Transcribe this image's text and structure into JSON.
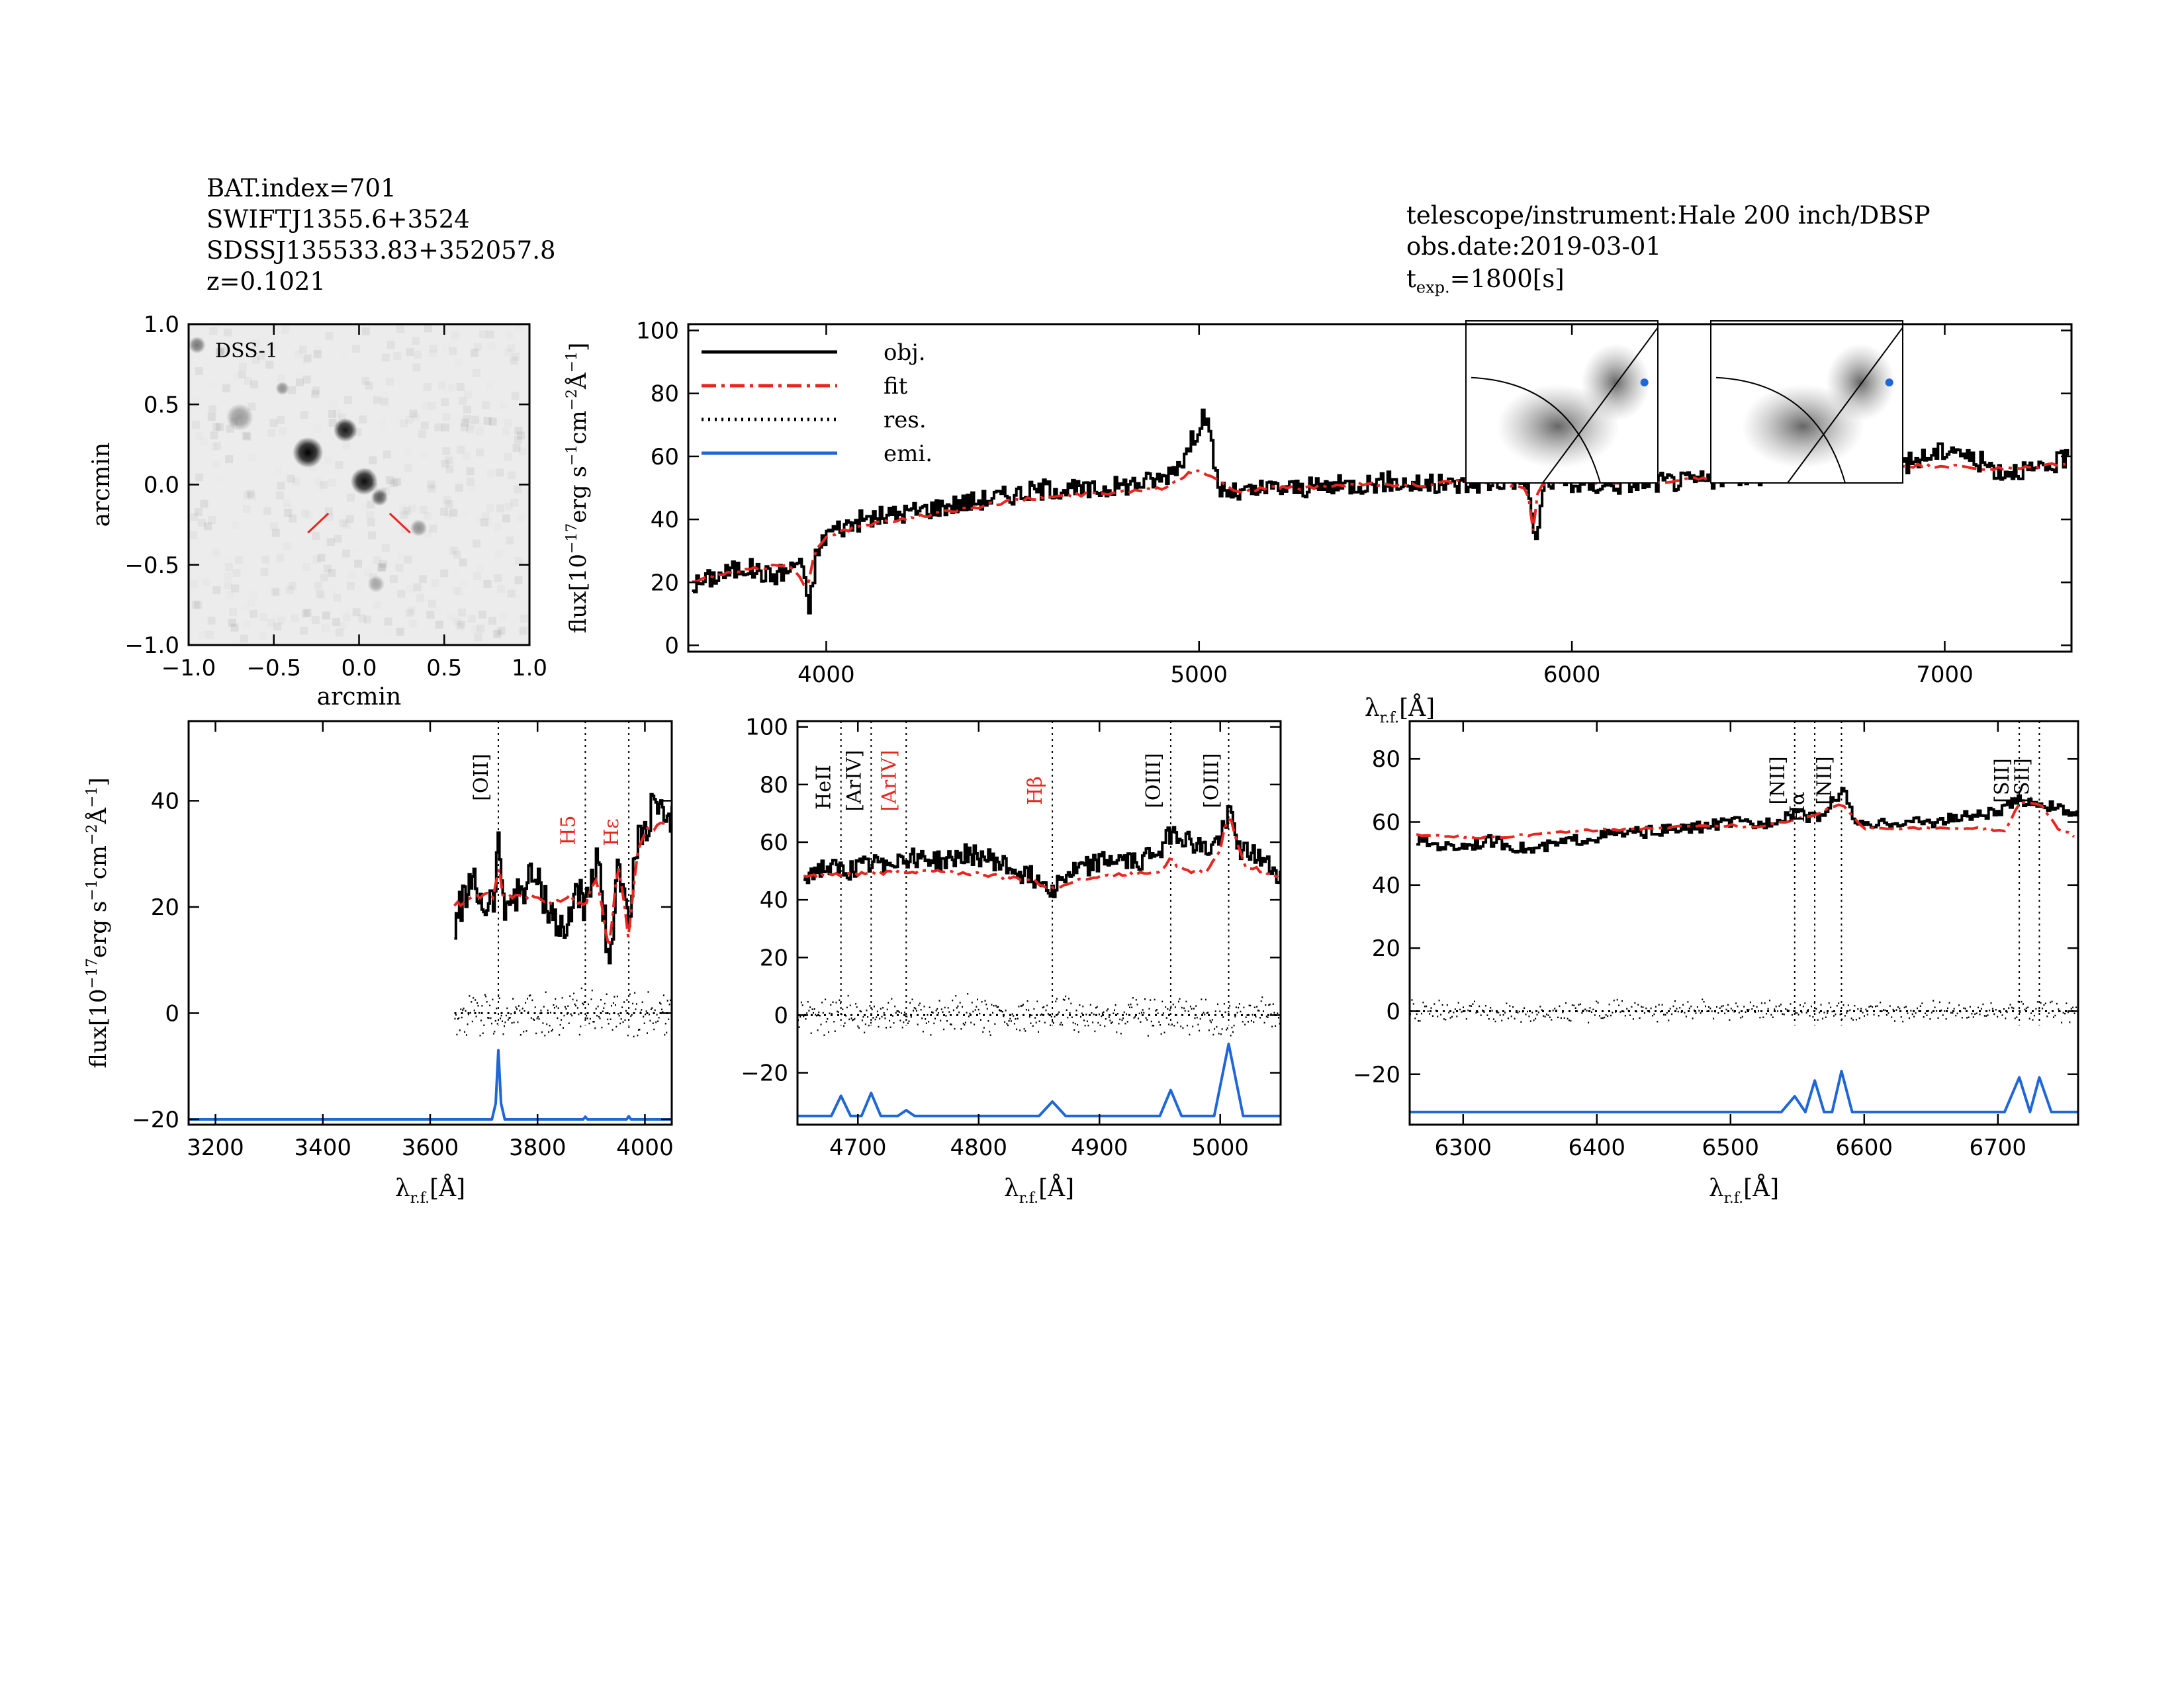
{
  "header_left": {
    "bat_index": "BAT.index=701",
    "swift_name": "SWIFTJ1355.6+3524",
    "sdss_name": "SDSSJ135533.83+352057.8",
    "redshift": "z=0.1021"
  },
  "header_right": {
    "instrument": "telescope/instrument:Hale 200 inch/DBSP",
    "obs_date": "obs.date:2019-03-01",
    "texp_prefix": "t",
    "texp_sub": "exp.",
    "texp_value": "=1800[s]"
  },
  "colors": {
    "obj": "#000000",
    "fit": "#e8251f",
    "res": "#000000",
    "emi": "#1f66d6",
    "label_red": "#e8251f"
  },
  "chart_data": [
    {
      "id": "dss_image",
      "type": "heatmap",
      "label": "DSS-1",
      "xlabel": "arcmin",
      "ylabel": "arcmin",
      "xlim": [
        -1.0,
        1.0
      ],
      "ylim": [
        -1.0,
        1.0
      ],
      "xticks": [
        "-1.0",
        "-0.5",
        "0.0",
        "0.5",
        "1.0"
      ],
      "yticks": [
        "-1.0",
        "-0.5",
        "0.0",
        "0.5",
        "1.0"
      ],
      "sources": [
        {
          "x": -0.3,
          "y": 0.2,
          "r": 0.09,
          "level": 1.0
        },
        {
          "x": -0.08,
          "y": 0.34,
          "r": 0.07,
          "level": 0.9
        },
        {
          "x": 0.03,
          "y": 0.02,
          "r": 0.08,
          "level": 0.95
        },
        {
          "x": 0.12,
          "y": -0.08,
          "r": 0.05,
          "level": 0.6
        },
        {
          "x": -0.7,
          "y": 0.42,
          "r": 0.08,
          "level": 0.35
        },
        {
          "x": -0.95,
          "y": 0.87,
          "r": 0.05,
          "level": 0.5
        },
        {
          "x": -0.45,
          "y": 0.6,
          "r": 0.04,
          "level": 0.4
        },
        {
          "x": 0.35,
          "y": -0.27,
          "r": 0.05,
          "level": 0.4
        },
        {
          "x": 0.1,
          "y": -0.62,
          "r": 0.05,
          "level": 0.3
        }
      ],
      "markers": [
        {
          "x1": -0.3,
          "y1": -0.3,
          "x2": -0.18,
          "y2": -0.18
        },
        {
          "x1": 0.3,
          "y1": -0.3,
          "x2": 0.18,
          "y2": -0.18
        }
      ]
    },
    {
      "id": "full_spectrum",
      "type": "line",
      "xlim": [
        3630,
        7340
      ],
      "ylim": [
        -2,
        102
      ],
      "xticks": [
        4000,
        5000,
        6000,
        7000
      ],
      "yticks": [
        0,
        20,
        40,
        60,
        80,
        100
      ],
      "ylabel": "flux[10^-17 erg s^-1 cm^-2 Å^-1]",
      "xlabel": "λr.f.[Å]",
      "legend": [
        "obj.",
        "fit",
        "res.",
        "emi."
      ],
      "series": [
        {
          "name": "obj.",
          "x": [
            3640,
            3700,
            3780,
            3850,
            3900,
            3930,
            3950,
            3970,
            4000,
            4050,
            4100,
            4200,
            4300,
            4400,
            4500,
            4600,
            4700,
            4800,
            4900,
            4960,
            4990,
            5010,
            5030,
            5050,
            5070,
            5100,
            5200,
            5300,
            5400,
            5500,
            5600,
            5700,
            5800,
            5850,
            5880,
            5890,
            5900,
            5920,
            5950,
            6000,
            6100,
            6200,
            6300,
            6400,
            6500,
            6550,
            6600,
            6650,
            6700,
            6750,
            6800,
            6900,
            7000,
            7030,
            7050,
            7100,
            7150,
            7200,
            7250,
            7300,
            7330
          ],
          "y": [
            19,
            22,
            25,
            22,
            24,
            28,
            10,
            28,
            36,
            38,
            40,
            42,
            44,
            46,
            48,
            50,
            49,
            51,
            53,
            60,
            68,
            74,
            64,
            50,
            49,
            48,
            50,
            50,
            51,
            52,
            51,
            51,
            52,
            53,
            52,
            40,
            32,
            50,
            52,
            51,
            51,
            52,
            52,
            53,
            54,
            57,
            55,
            55,
            56,
            57,
            55,
            58,
            62,
            63,
            60,
            58,
            55,
            56,
            55,
            58,
            60
          ]
        },
        {
          "name": "fit",
          "x": [
            3640,
            3700,
            3800,
            3900,
            3950,
            3970,
            4000,
            4100,
            4200,
            4300,
            4400,
            4500,
            4600,
            4700,
            4800,
            4900,
            5000,
            5100,
            5200,
            5300,
            5400,
            5500,
            5600,
            5700,
            5800,
            5880,
            5895,
            5910,
            5950,
            6000,
            6200,
            6400,
            6550,
            6600,
            6700,
            6800,
            6900,
            7000,
            7100,
            7200,
            7330
          ],
          "y": [
            20,
            22,
            24,
            26,
            18,
            30,
            35,
            38,
            40,
            42,
            44,
            46,
            47,
            48,
            49,
            50,
            56,
            49,
            50,
            50,
            51,
            51,
            51,
            52,
            52,
            50,
            36,
            50,
            52,
            52,
            52,
            53,
            54,
            55,
            55,
            56,
            57,
            57,
            56,
            56,
            58
          ]
        }
      ]
    },
    {
      "id": "zoom_oii",
      "type": "line",
      "xlim": [
        3150,
        4050
      ],
      "ylim": [
        -21,
        55
      ],
      "xticks": [
        3200,
        3400,
        3600,
        3800,
        4000
      ],
      "yticks": [
        -20,
        0,
        20,
        40
      ],
      "xlabel": "λr.f.[Å]",
      "ylabel": "flux[10^-17 erg s^-1 cm^-2 Å^-1]",
      "lines": [
        {
          "label": "[OII]",
          "x": 3727,
          "color": "black"
        },
        {
          "label": "H5",
          "x": 3889,
          "color": "red"
        },
        {
          "label": "Hε",
          "x": 3970,
          "color": "red"
        }
      ],
      "series": [
        {
          "name": "obj.",
          "x": [
            3645,
            3660,
            3680,
            3700,
            3720,
            3727,
            3735,
            3760,
            3790,
            3820,
            3850,
            3870,
            3890,
            3910,
            3925,
            3933,
            3945,
            3960,
            3970,
            3980,
            4000,
            4020,
            4040,
            4050
          ],
          "y": [
            16,
            22,
            24,
            20,
            22,
            34,
            21,
            22,
            26,
            20,
            14,
            24,
            20,
            28,
            18,
            6,
            26,
            26,
            14,
            30,
            35,
            40,
            34,
            36
          ]
        },
        {
          "name": "fit",
          "x": [
            3645,
            3680,
            3720,
            3727,
            3735,
            3780,
            3820,
            3860,
            3890,
            3910,
            3933,
            3950,
            3970,
            3985,
            4000,
            4050
          ],
          "y": [
            20,
            22,
            22,
            28,
            22,
            22,
            21,
            22,
            20,
            26,
            12,
            28,
            14,
            30,
            34,
            36
          ]
        },
        {
          "name": "emi.",
          "x": [
            3150,
            3715,
            3722,
            3727,
            3732,
            3739,
            3885,
            3889,
            3893,
            3966,
            3970,
            3974,
            4050
          ],
          "y": [
            -20,
            -20,
            -17,
            -7,
            -17,
            -20,
            -20,
            -19.5,
            -20,
            -20,
            -19.4,
            -20,
            -20
          ]
        }
      ],
      "res_x_range": [
        3645,
        4050
      ],
      "res_scatter": 3.5
    },
    {
      "id": "zoom_hb",
      "type": "line",
      "xlim": [
        4650,
        5050
      ],
      "ylim": [
        -38,
        102
      ],
      "xticks": [
        4700,
        4800,
        4900,
        5000
      ],
      "yticks": [
        -20,
        0,
        20,
        40,
        60,
        80,
        100
      ],
      "xlabel": "λr.f.[Å]",
      "lines": [
        {
          "label": "HeII",
          "x": 4686,
          "color": "black"
        },
        {
          "label": "[ArIV]",
          "x": 4711,
          "color": "black"
        },
        {
          "label": "[ArIV]",
          "x": 4740,
          "color": "red"
        },
        {
          "label": "Hβ",
          "x": 4861,
          "color": "red"
        },
        {
          "label": "[OIII]",
          "x": 4959,
          "color": "black"
        },
        {
          "label": "[OIII]",
          "x": 5007,
          "color": "black"
        }
      ],
      "series": [
        {
          "name": "obj.",
          "x": [
            4655,
            4670,
            4690,
            4710,
            4730,
            4750,
            4770,
            4790,
            4810,
            4830,
            4850,
            4861,
            4870,
            4890,
            4910,
            4930,
            4950,
            4960,
            4975,
            4990,
            5000,
            5007,
            5015,
            5030,
            5050
          ],
          "y": [
            49,
            51,
            50,
            52,
            54,
            55,
            53,
            56,
            54,
            50,
            47,
            44,
            48,
            52,
            54,
            53,
            58,
            64,
            60,
            57,
            62,
            72,
            58,
            55,
            48
          ]
        },
        {
          "name": "fit",
          "x": [
            4655,
            4700,
            4750,
            4800,
            4840,
            4861,
            4880,
            4920,
            4950,
            4959,
            4970,
            4990,
            5000,
            5007,
            5020,
            5050
          ],
          "y": [
            48,
            49,
            50,
            49,
            47,
            44,
            47,
            49,
            50,
            54,
            50,
            50,
            58,
            70,
            52,
            48
          ]
        },
        {
          "name": "emi.",
          "x": [
            4650,
            4678,
            4686,
            4694,
            4703,
            4711,
            4719,
            4733,
            4740,
            4747,
            4850,
            4861,
            4872,
            4950,
            4959,
            4968,
            4995,
            5007,
            5019,
            5050
          ],
          "y": [
            -35,
            -35,
            -28,
            -35,
            -35,
            -27,
            -35,
            -35,
            -33,
            -35,
            -35,
            -30,
            -35,
            -35,
            -26,
            -35,
            -35,
            -10,
            -35,
            -35
          ]
        }
      ],
      "res_x_range": [
        4650,
        5050
      ],
      "res_scatter": 5
    },
    {
      "id": "zoom_ha",
      "type": "line",
      "xlim": [
        6260,
        6760
      ],
      "ylim": [
        -36,
        92
      ],
      "xticks": [
        6300,
        6400,
        6500,
        6600,
        6700
      ],
      "yticks": [
        -20,
        0,
        20,
        40,
        60,
        80
      ],
      "xlabel": "λr.f.[Å]",
      "lines": [
        {
          "label": "[NII]",
          "x": 6548,
          "color": "black"
        },
        {
          "label": "Hα",
          "x": 6563,
          "color": "black"
        },
        {
          "label": "[NII]",
          "x": 6583,
          "color": "black"
        },
        {
          "label": "[SII]",
          "x": 6716,
          "color": "black"
        },
        {
          "label": "[SII]",
          "x": 6731,
          "color": "black"
        }
      ],
      "series": [
        {
          "name": "obj.",
          "x": [
            6265,
            6290,
            6320,
            6350,
            6380,
            6410,
            6440,
            6470,
            6500,
            6520,
            6540,
            6550,
            6560,
            6570,
            6583,
            6590,
            6600,
            6620,
            6650,
            6680,
            6700,
            6716,
            6731,
            6745,
            6760
          ],
          "y": [
            54,
            52,
            54,
            51,
            54,
            56,
            57,
            58,
            60,
            59,
            62,
            64,
            61,
            63,
            71,
            62,
            58,
            60,
            60,
            62,
            63,
            67,
            66,
            64,
            62
          ]
        },
        {
          "name": "fit",
          "x": [
            6265,
            6320,
            6380,
            6440,
            6500,
            6520,
            6540,
            6563,
            6583,
            6600,
            6640,
            6690,
            6705,
            6716,
            6731,
            6745,
            6760
          ],
          "y": [
            56,
            55,
            57,
            58,
            59,
            58,
            60,
            62,
            66,
            58,
            58,
            58,
            57,
            66,
            66,
            58,
            55
          ]
        },
        {
          "name": "emi.",
          "x": [
            6260,
            6538,
            6548,
            6556,
            6563,
            6570,
            6576,
            6583,
            6591,
            6705,
            6716,
            6724,
            6731,
            6740,
            6760
          ],
          "y": [
            -32,
            -32,
            -27,
            -32,
            -22,
            -32,
            -32,
            -19,
            -32,
            -32,
            -21,
            -32,
            -21,
            -32,
            -32
          ]
        }
      ],
      "res_x_range": [
        6260,
        6760
      ],
      "res_scatter": 2.5
    }
  ]
}
